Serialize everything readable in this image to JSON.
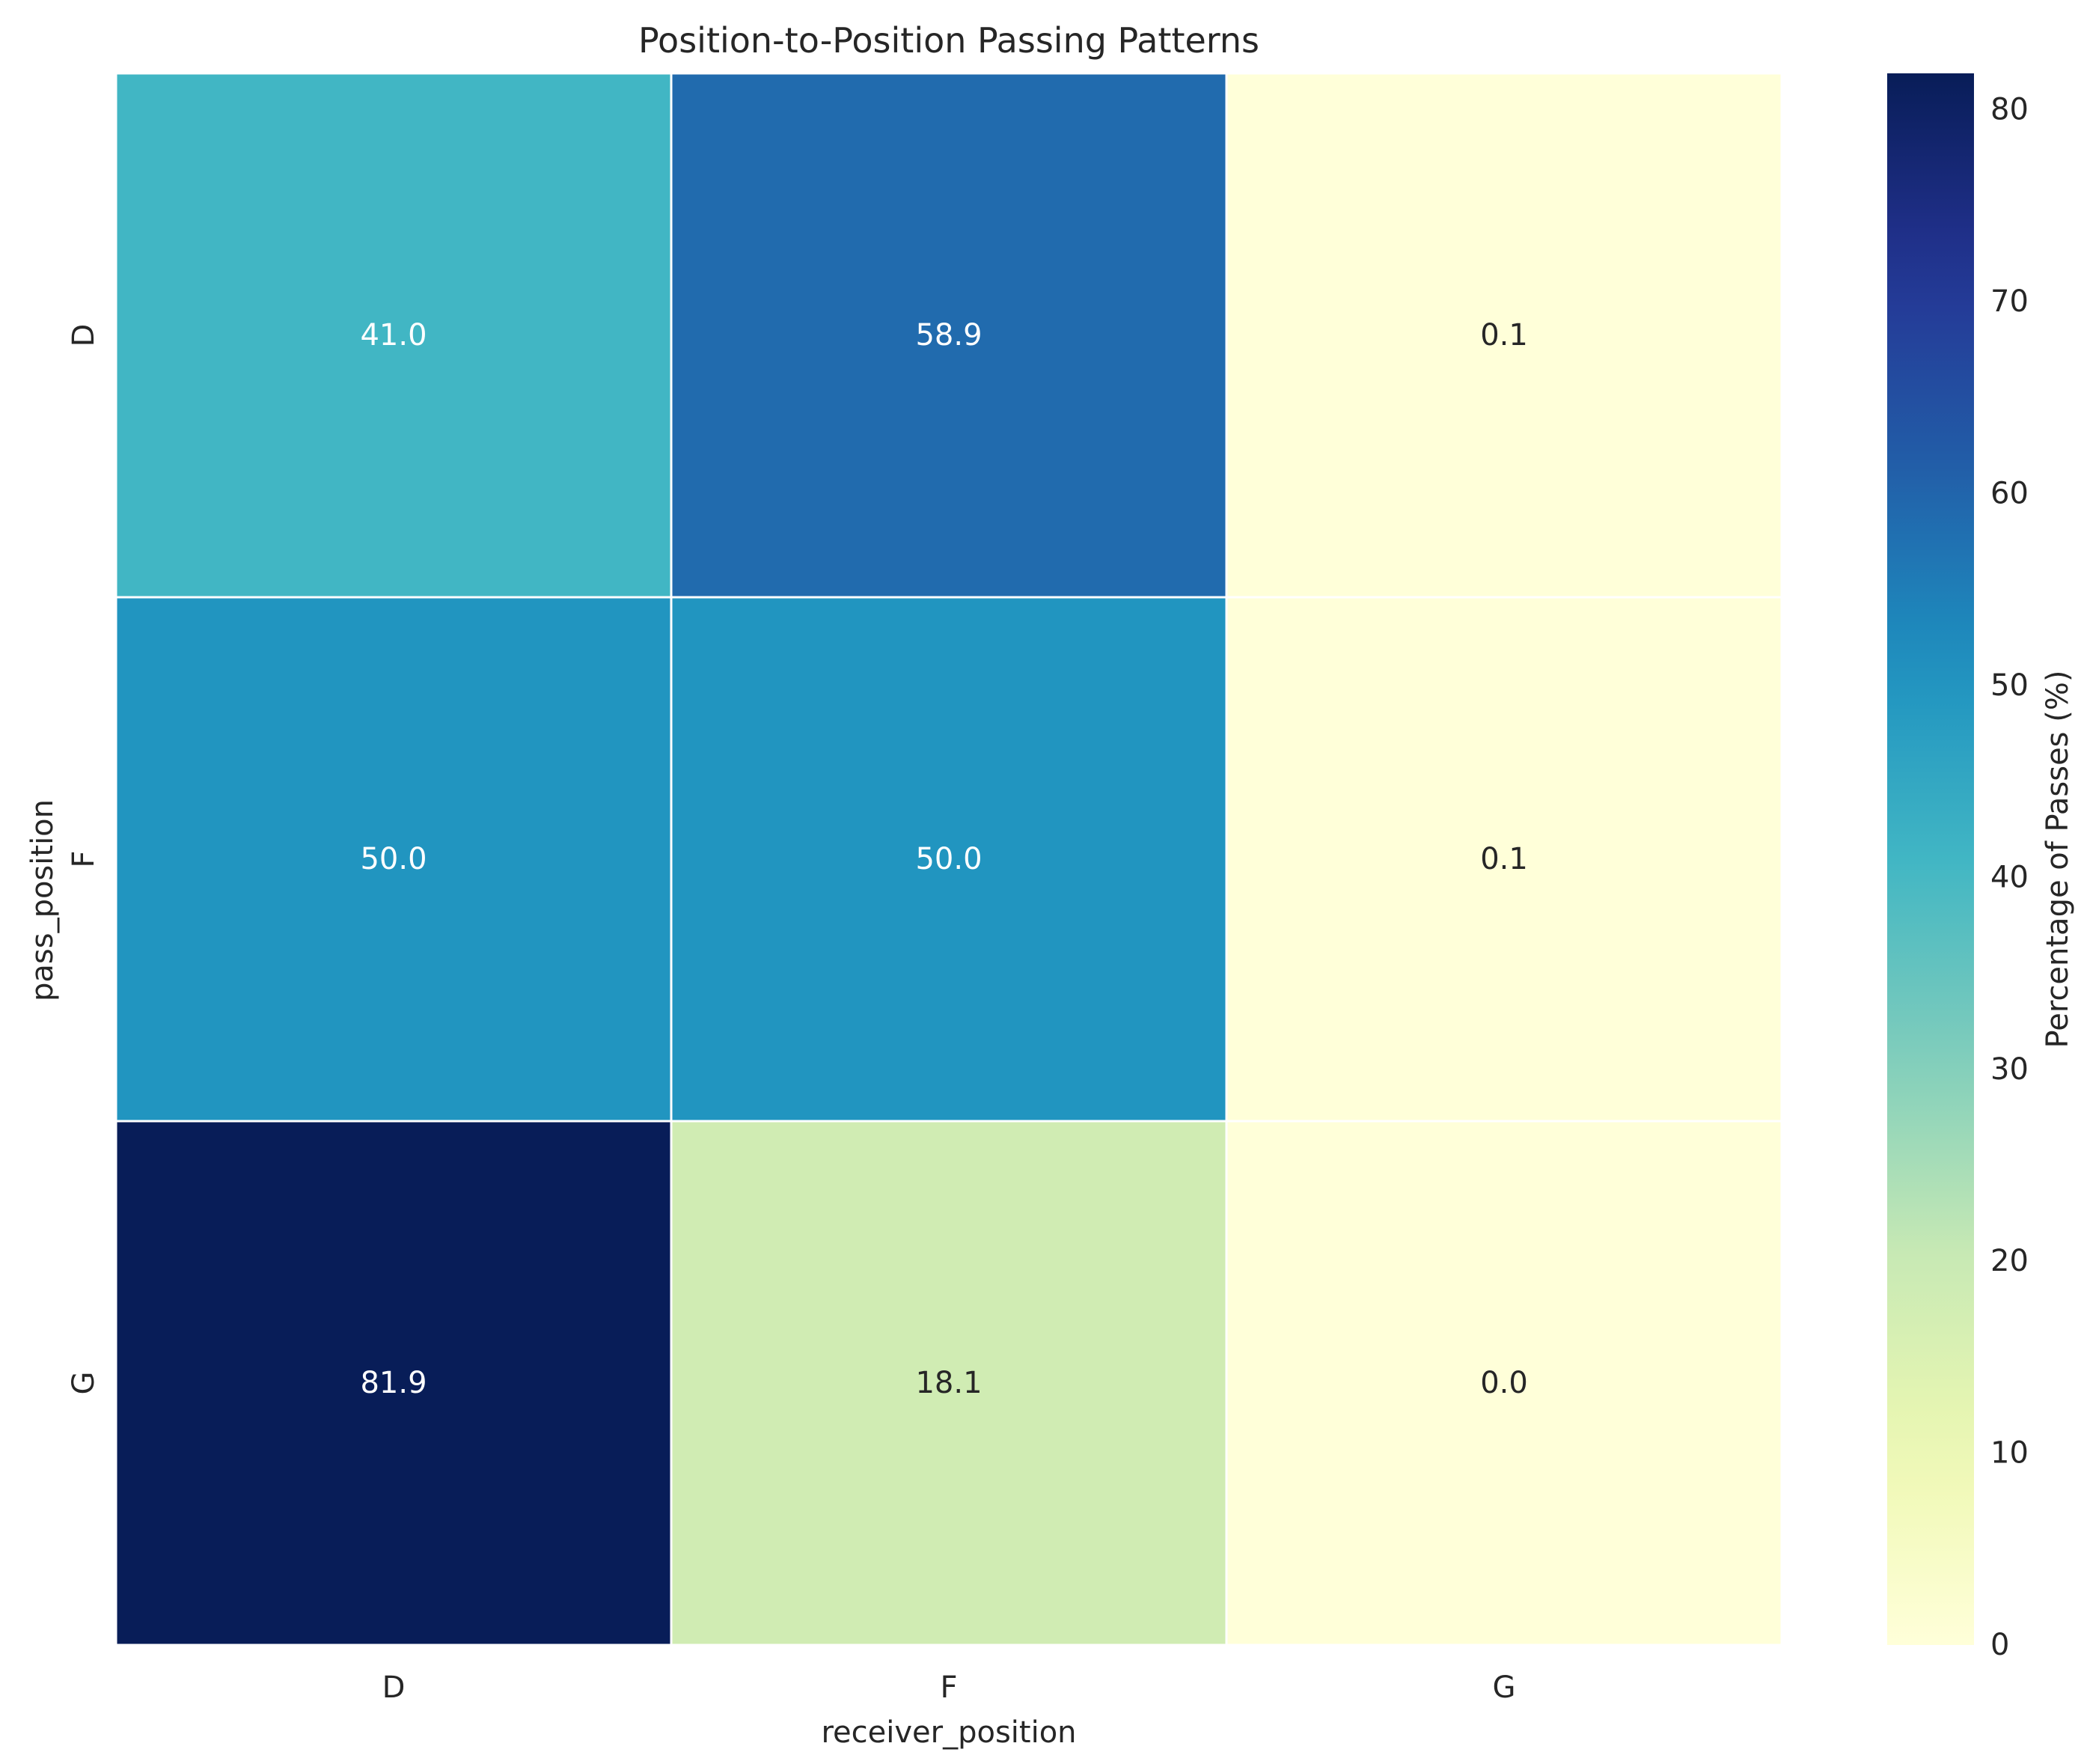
{
  "chart_data": {
    "type": "heatmap",
    "title": "Position-to-Position Passing Patterns",
    "xlabel": "receiver_position",
    "ylabel": "pass_position",
    "x_categories": [
      "D",
      "F",
      "G"
    ],
    "y_categories": [
      "D",
      "F",
      "G"
    ],
    "values": [
      [
        41.0,
        58.9,
        0.1
      ],
      [
        50.0,
        50.0,
        0.1
      ],
      [
        81.9,
        18.1,
        0.0
      ]
    ],
    "value_format": "0.1f",
    "colormap": "YlGnBu",
    "colorbar": {
      "label": "Percentage of Passes (%)",
      "range": [
        0,
        81.9
      ],
      "ticks": [
        0,
        10,
        20,
        30,
        40,
        50,
        60,
        70,
        80
      ]
    },
    "grid": false,
    "cell_border_color": "#ffffff"
  }
}
